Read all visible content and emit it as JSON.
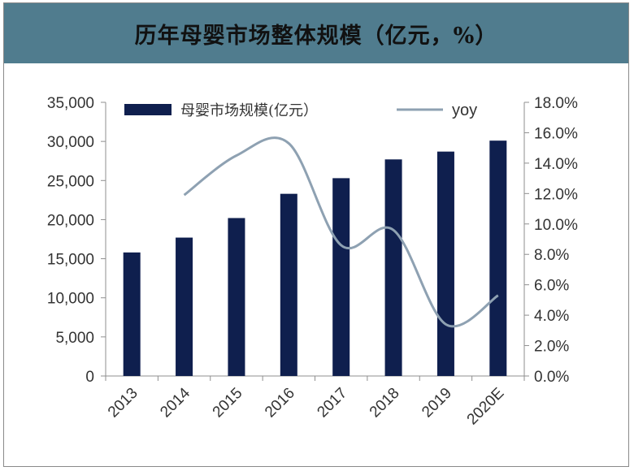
{
  "header": {
    "title": "历年母婴市场整体规模（亿元，%）"
  },
  "chart_data": {
    "type": "bar",
    "categories": [
      "2013",
      "2014",
      "2015",
      "2016",
      "2017",
      "2018",
      "2019",
      "2020E"
    ],
    "series": [
      {
        "name": "母婴市场规模(亿元）",
        "type": "bar",
        "axis": "left",
        "values": [
          15800,
          17700,
          20200,
          23300,
          25300,
          27700,
          28700,
          30100
        ]
      },
      {
        "name": "yoy",
        "type": "line",
        "axis": "right",
        "values": [
          null,
          11.9,
          14.5,
          15.3,
          8.6,
          9.6,
          3.4,
          5.3
        ]
      }
    ],
    "y_left": {
      "min": 0,
      "max": 35000,
      "step": 5000,
      "ticks": [
        "0",
        "5,000",
        "10,000",
        "15,000",
        "20,000",
        "25,000",
        "30,000",
        "35,000"
      ]
    },
    "y_right": {
      "min": 0,
      "max": 18,
      "step": 2,
      "ticks": [
        "0.0%",
        "2.0%",
        "4.0%",
        "6.0%",
        "8.0%",
        "10.0%",
        "12.0%",
        "14.0%",
        "16.0%",
        "18.0%"
      ]
    },
    "legend_position": "top",
    "colors": {
      "bar": "#0f1f4e",
      "line": "#8ea1b2",
      "axis": "#8f8f8f"
    }
  }
}
